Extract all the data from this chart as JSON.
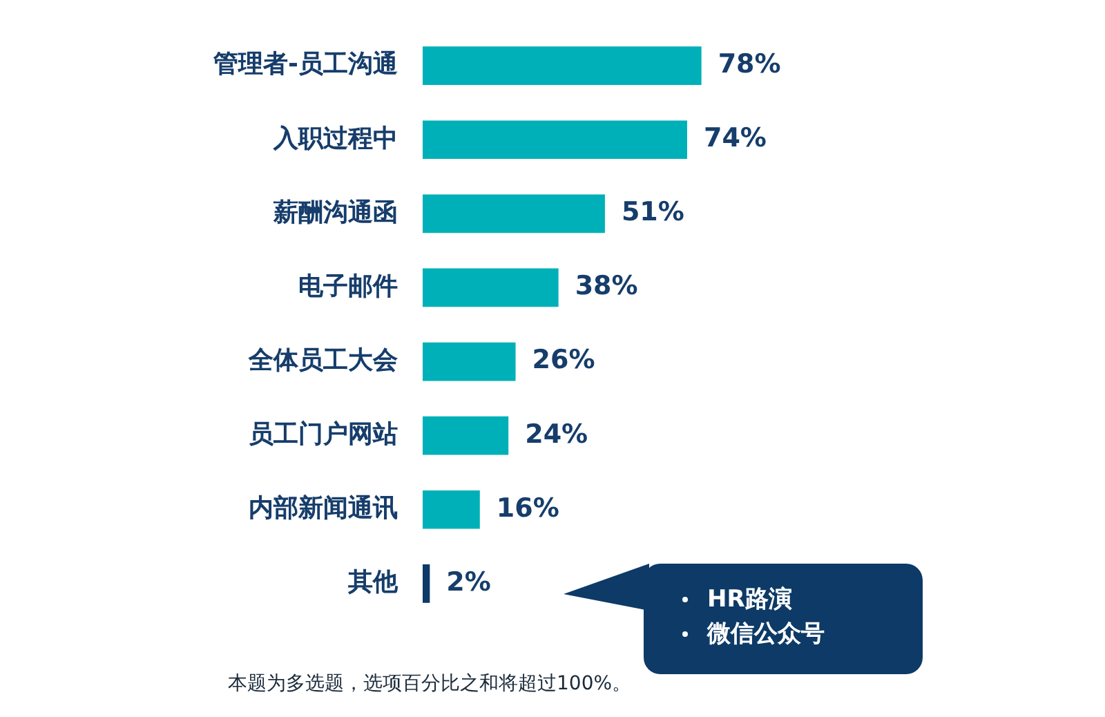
{
  "chart_data": {
    "type": "bar",
    "orientation": "horizontal",
    "categories": [
      "管理者-员工沟通",
      "入职过程中",
      "薪酬沟通函",
      "电子邮件",
      "全体员工大会",
      "员工门户网站",
      "内部新闻通讯",
      "其他"
    ],
    "values": [
      78,
      74,
      51,
      38,
      26,
      24,
      16,
      2
    ],
    "value_labels": [
      "78%",
      "74%",
      "51%",
      "38%",
      "26%",
      "24%",
      "16%",
      "2%"
    ],
    "colors": [
      "#00b0b8",
      "#00b0b8",
      "#00b0b8",
      "#00b0b8",
      "#00b0b8",
      "#00b0b8",
      "#00b0b8",
      "#0d3a66"
    ],
    "legend": false,
    "annotations": [
      "HR路演",
      "微信公众号",
      "本题为多选题，选项百分比之和将超过100%。"
    ]
  }
}
